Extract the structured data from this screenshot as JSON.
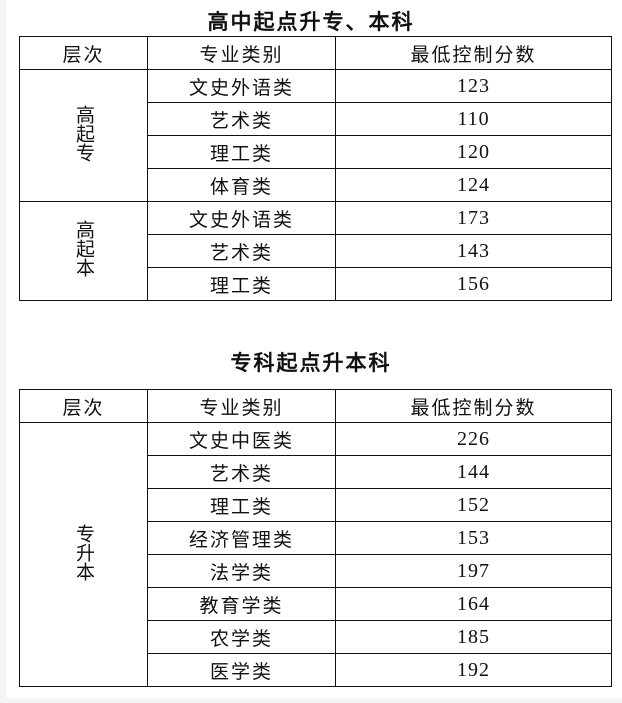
{
  "tables": [
    {
      "title": "高中起点升专、本科",
      "headers": [
        "层次",
        "专业类别",
        "最低控制分数"
      ],
      "groups": [
        {
          "level": "高起专",
          "rows": [
            {
              "category": "文史外语类",
              "score": "123"
            },
            {
              "category": "艺术类",
              "score": "110"
            },
            {
              "category": "理工类",
              "score": "120"
            },
            {
              "category": "体育类",
              "score": "124"
            }
          ]
        },
        {
          "level": "高起本",
          "rows": [
            {
              "category": "文史外语类",
              "score": "173"
            },
            {
              "category": "艺术类",
              "score": "143"
            },
            {
              "category": "理工类",
              "score": "156"
            }
          ]
        }
      ]
    },
    {
      "title": "专科起点升本科",
      "headers": [
        "层次",
        "专业类别",
        "最低控制分数"
      ],
      "groups": [
        {
          "level": "专升本",
          "rows": [
            {
              "category": "文史中医类",
              "score": "226"
            },
            {
              "category": "艺术类",
              "score": "144"
            },
            {
              "category": "理工类",
              "score": "152"
            },
            {
              "category": "经济管理类",
              "score": "153"
            },
            {
              "category": "法学类",
              "score": "197"
            },
            {
              "category": "教育学类",
              "score": "164"
            },
            {
              "category": "农学类",
              "score": "185"
            },
            {
              "category": "医学类",
              "score": "192"
            }
          ]
        }
      ]
    }
  ]
}
